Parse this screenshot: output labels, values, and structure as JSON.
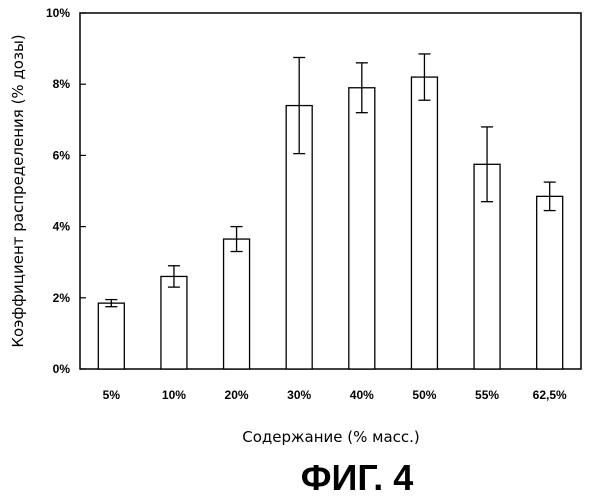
{
  "chart_data": {
    "type": "bar",
    "categories": [
      "5%",
      "10%",
      "20%",
      "30%",
      "40%",
      "50%",
      "55%",
      "62,5%"
    ],
    "values": [
      1.85,
      2.6,
      3.65,
      7.4,
      7.9,
      8.2,
      5.75,
      4.85
    ],
    "errors": [
      0.1,
      0.3,
      0.35,
      1.35,
      0.7,
      0.65,
      1.05,
      0.4
    ],
    "ylim": [
      0,
      10
    ],
    "yticks": [
      0,
      2,
      4,
      6,
      8,
      10
    ],
    "ytick_labels": [
      "0%",
      "2%",
      "4%",
      "6%",
      "8%",
      "10%"
    ],
    "ylabel": "Коэффициент распределения (% дозы)",
    "xlabel": "Содержание (% масс.)",
    "grid": false,
    "bar_fill": "#ffffff",
    "bar_stroke": "#000000"
  },
  "caption": "ФИГ. 4"
}
